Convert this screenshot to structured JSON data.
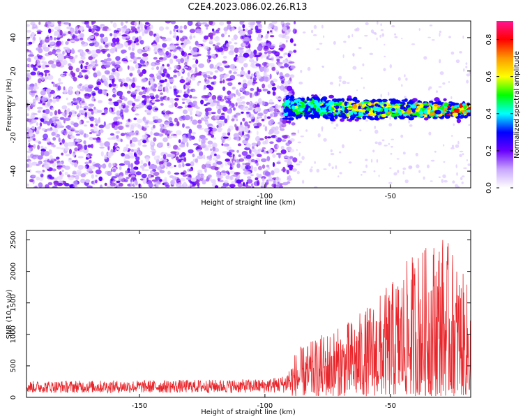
{
  "title": "C2E4.2023.086.02.26.R13",
  "colors": {
    "background": "#ffffff",
    "snr_line": "#e8262b",
    "speckle": "#8a2be2",
    "axis": "#000000"
  },
  "chart_data": [
    {
      "type": "heatmap",
      "xlabel": "Height of straight line (km)",
      "ylabel": "Frequency (Hz)",
      "xlim": [
        -195,
        -18
      ],
      "ylim": [
        -50,
        50
      ],
      "x_ticks": [
        -150,
        -100,
        -50
      ],
      "y_ticks": [
        -40,
        -20,
        0,
        20,
        40
      ],
      "description_values": {
        "noise_region_x": [
          -195,
          -88
        ],
        "signal_band_x": [
          -92,
          -18
        ],
        "signal_center_freq": [
          -2,
          -3.5
        ],
        "signal_band_halfwidth": 5
      },
      "colorbar": {
        "label": "Normalized spectral amplitude",
        "range": [
          0.0,
          0.9
        ],
        "ticks": [
          0.0,
          0.2,
          0.4,
          0.6,
          0.8
        ],
        "tick_labels": [
          "0.0",
          "0.2",
          "0.4",
          "0.6",
          "0.8"
        ],
        "colormap": [
          "#ffffff",
          "#c9a6ff",
          "#6a00ff",
          "#0000ff",
          "#00ffff",
          "#00ff00",
          "#ffff00",
          "#ff9900",
          "#ff0000",
          "#ff1493"
        ]
      }
    },
    {
      "type": "line",
      "xlabel": "Height of straight line (km)",
      "ylabel": "SNR (10 * v/v)",
      "xlim": [
        -195,
        -18
      ],
      "ylim": [
        0,
        2650
      ],
      "x_ticks": [
        -150,
        -100,
        -50
      ],
      "y_ticks": [
        0,
        500,
        1000,
        1500,
        2000,
        2500
      ],
      "envelope": {
        "x": [
          -195,
          -150,
          -100,
          -92,
          -88,
          -85,
          -80,
          -75,
          -70,
          -65,
          -60,
          -55,
          -50,
          -45,
          -40,
          -35,
          -30,
          -25,
          -20,
          -18
        ],
        "y_max": [
          260,
          270,
          290,
          350,
          700,
          800,
          900,
          1050,
          1100,
          1250,
          1400,
          1600,
          1800,
          2050,
          2350,
          2400,
          2650,
          2300,
          1850,
          1700
        ]
      }
    }
  ]
}
